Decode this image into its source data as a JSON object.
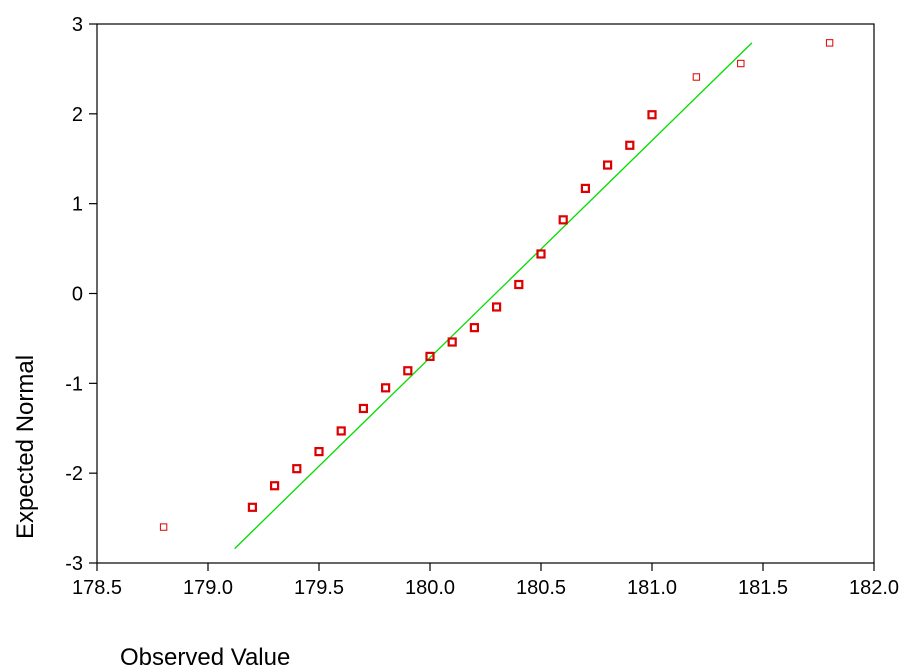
{
  "chart_data": {
    "type": "scatter",
    "title": "",
    "xlabel": "Observed Value",
    "ylabel": "Expected Normal",
    "xlim": [
      178.5,
      182.0
    ],
    "ylim": [
      -3,
      3
    ],
    "x_ticks": [
      "178.5",
      "179.0",
      "179.5",
      "180.0",
      "180.5",
      "181.0",
      "181.5",
      "182.0"
    ],
    "y_ticks": [
      "-3",
      "-2",
      "-1",
      "0",
      "1",
      "2",
      "3"
    ],
    "grid": false,
    "legend": "none",
    "series": [
      {
        "marker": "hollow-square",
        "color": "#dd0000",
        "points": [
          {
            "x": 178.8,
            "y": -2.6,
            "weight": "light"
          },
          {
            "x": 179.2,
            "y": -2.38,
            "weight": "bold"
          },
          {
            "x": 179.3,
            "y": -2.14,
            "weight": "bold"
          },
          {
            "x": 179.4,
            "y": -1.95,
            "weight": "bold"
          },
          {
            "x": 179.5,
            "y": -1.76,
            "weight": "bold"
          },
          {
            "x": 179.6,
            "y": -1.53,
            "weight": "bold"
          },
          {
            "x": 179.7,
            "y": -1.28,
            "weight": "bold"
          },
          {
            "x": 179.8,
            "y": -1.05,
            "weight": "bold"
          },
          {
            "x": 179.9,
            "y": -0.86,
            "weight": "bold"
          },
          {
            "x": 180.0,
            "y": -0.7,
            "weight": "bold"
          },
          {
            "x": 180.1,
            "y": -0.54,
            "weight": "bold"
          },
          {
            "x": 180.2,
            "y": -0.38,
            "weight": "bold"
          },
          {
            "x": 180.3,
            "y": -0.15,
            "weight": "bold"
          },
          {
            "x": 180.4,
            "y": 0.1,
            "weight": "bold"
          },
          {
            "x": 180.5,
            "y": 0.44,
            "weight": "bold"
          },
          {
            "x": 180.6,
            "y": 0.82,
            "weight": "bold"
          },
          {
            "x": 180.7,
            "y": 1.17,
            "weight": "bold"
          },
          {
            "x": 180.8,
            "y": 1.43,
            "weight": "bold"
          },
          {
            "x": 180.9,
            "y": 1.65,
            "weight": "bold"
          },
          {
            "x": 181.0,
            "y": 1.99,
            "weight": "bold"
          },
          {
            "x": 181.2,
            "y": 2.41,
            "weight": "light"
          },
          {
            "x": 181.4,
            "y": 2.56,
            "weight": "light"
          },
          {
            "x": 181.8,
            "y": 2.79,
            "weight": "light"
          }
        ]
      }
    ],
    "reference_line": {
      "color": "#00dd00",
      "x": [
        179.12,
        181.45
      ],
      "y": [
        -2.84,
        2.79
      ]
    }
  }
}
